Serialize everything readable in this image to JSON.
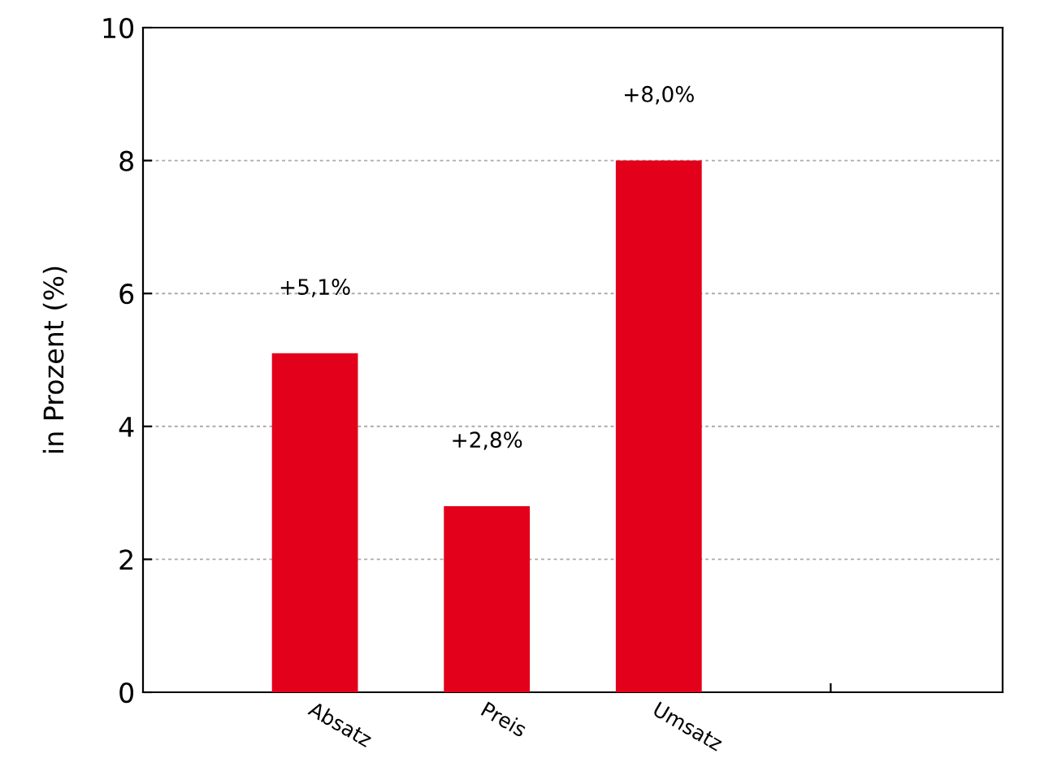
{
  "chart_data": {
    "type": "bar",
    "ylabel": "in Prozent (%)",
    "categories": [
      "Absatz",
      "Preis",
      "Umsatz",
      null
    ],
    "values": [
      5.1,
      2.8,
      8.0,
      null
    ],
    "value_labels": [
      "+5,1%",
      "+2,8%",
      "+8,0%",
      null
    ],
    "color": "#e2001a",
    "ylim": [
      0,
      10
    ],
    "yticks": [
      0,
      2,
      4,
      6,
      8,
      10
    ],
    "grid": "y",
    "legend": false
  }
}
